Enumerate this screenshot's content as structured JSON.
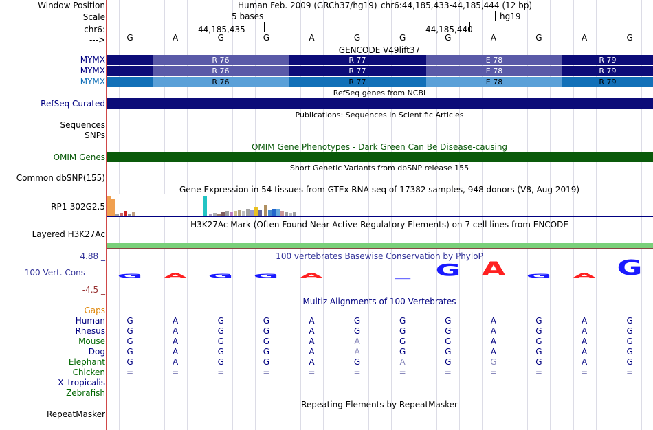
{
  "window_position": {
    "label": "Window Position",
    "assembly": "Human Feb. 2009 (GRCh37/hg19)",
    "coords": "chr6:44,185,433-44,185,444 (12 bp)"
  },
  "scale": {
    "label": "Scale",
    "text": "5 bases",
    "db": "hg19"
  },
  "chrom": {
    "label": "chr6:",
    "pos1": "44,185,435",
    "pos2": "44,185,440"
  },
  "strand": {
    "label": "--->",
    "bases": [
      "G",
      "A",
      "G",
      "G",
      "A",
      "G",
      "G",
      "G",
      "A",
      "G",
      "A",
      "G"
    ]
  },
  "gencode": {
    "title": "GENCODE V49lift37",
    "tracks": [
      {
        "label": "MYMX",
        "codons": [
          "",
          "R 76",
          "R 77",
          "E 78",
          "R 79"
        ]
      },
      {
        "label": "MYMX",
        "codons": [
          "",
          "R 76",
          "R 77",
          "E 78",
          "R 79"
        ]
      },
      {
        "label": "MYMX",
        "codons": [
          "",
          "R 76",
          "R 77",
          "E 78",
          "R 79"
        ]
      }
    ]
  },
  "refseq": {
    "title": "RefSeq genes from NCBI",
    "label": "RefSeq Curated"
  },
  "publications": {
    "title": "Publications: Sequences in Scientific Articles",
    "label": "Sequences"
  },
  "snps": {
    "label": "SNPs"
  },
  "omim": {
    "title": "OMIM Gene Phenotypes - Dark Green Can Be Disease-causing",
    "label": "OMIM Genes"
  },
  "dbsnp": {
    "title": "Short Genetic Variants from dbSNP release 155",
    "label": "Common dbSNP(155)"
  },
  "gtex": {
    "title": "Gene Expression in 54 tissues from GTEx RNA-seq of 17382 samples, 948 donors (V8, Aug 2019)",
    "label": "RP1-302G2.5",
    "bars": [
      {
        "v": 0.95,
        "c": "#f0a050"
      },
      {
        "v": 0.85,
        "c": "#f0a050"
      },
      {
        "v": 0.1,
        "c": "#a0a0a0"
      },
      {
        "v": 0.15,
        "c": "#cc6666"
      },
      {
        "v": 0.25,
        "c": "#cc2222"
      },
      {
        "v": 0.1,
        "c": "#999999"
      },
      {
        "v": 0.2,
        "c": "#c0a080"
      },
      {
        "v": 0.95,
        "c": "#22c4c4"
      },
      {
        "v": 0.1,
        "c": "#b0a0c0"
      },
      {
        "v": 0.15,
        "c": "#b0b0b0"
      },
      {
        "v": 0.12,
        "c": "#a08070"
      },
      {
        "v": 0.2,
        "c": "#806060"
      },
      {
        "v": 0.25,
        "c": "#a0a0a0"
      },
      {
        "v": 0.2,
        "c": "#c080c0"
      },
      {
        "v": 0.25,
        "c": "#d0c090"
      },
      {
        "v": 0.3,
        "c": "#b0a080"
      },
      {
        "v": 0.25,
        "c": "#c0c0c0"
      },
      {
        "v": 0.35,
        "c": "#a0a0a0"
      },
      {
        "v": 0.3,
        "c": "#9999cc"
      },
      {
        "v": 0.45,
        "c": "#e8c020"
      },
      {
        "v": 0.3,
        "c": "#666699"
      },
      {
        "v": 0.55,
        "c": "#b09060"
      },
      {
        "v": 0.3,
        "c": "#4488cc"
      },
      {
        "v": 0.35,
        "c": "#2266cc"
      },
      {
        "v": 0.35,
        "c": "#66aadd"
      },
      {
        "v": 0.25,
        "c": "#cc9999"
      },
      {
        "v": 0.2,
        "c": "#a0a0a0"
      },
      {
        "v": 0.15,
        "c": "#c0c0c0"
      },
      {
        "v": 0.18,
        "c": "#a0a0a0"
      }
    ]
  },
  "h3k27ac": {
    "title": "H3K27Ac Mark (Often Found Near Active Regulatory Elements) on 7 cell lines from ENCODE",
    "label": "Layered H3K27Ac"
  },
  "phylop": {
    "title": "100 vertebrates Basewise Conservation by PhyloP",
    "label": "100 Vert. Cons",
    "max": "4.88 _",
    "min": "-4.5 _",
    "letters": [
      {
        "b": "G",
        "c": "#1a1aff",
        "h": 0.2
      },
      {
        "b": "A",
        "c": "#ff2020",
        "h": 0.3
      },
      {
        "b": "G",
        "c": "#1a1aff",
        "h": 0.2
      },
      {
        "b": "G",
        "c": "#1a1aff",
        "h": 0.2
      },
      {
        "b": "A",
        "c": "#ff2020",
        "h": 0.3
      },
      {
        "b": "",
        "c": "#1a1aff",
        "h": 0
      },
      {
        "b": "_",
        "c": "#1a1aff",
        "h": 0.1
      },
      {
        "b": "G",
        "c": "#1a1aff",
        "h": 0.8
      },
      {
        "b": "A",
        "c": "#ff2020",
        "h": 0.9
      },
      {
        "b": "G",
        "c": "#1a1aff",
        "h": 0.2
      },
      {
        "b": "A",
        "c": "#ff2020",
        "h": 0.3
      },
      {
        "b": "G",
        "c": "#1a1aff",
        "h": 1.0
      }
    ]
  },
  "multiz": {
    "title": "Multiz Alignments of 100 Vertebrates",
    "gaps_label": "Gaps",
    "species": [
      {
        "name": "Human",
        "color": "#000080",
        "bases": [
          "G",
          "A",
          "G",
          "G",
          "A",
          "G",
          "G",
          "G",
          "A",
          "G",
          "A",
          "G"
        ],
        "dim": []
      },
      {
        "name": "Rhesus",
        "color": "#000080",
        "bases": [
          "G",
          "A",
          "G",
          "G",
          "A",
          "G",
          "G",
          "G",
          "A",
          "G",
          "A",
          "G"
        ],
        "dim": []
      },
      {
        "name": "Mouse",
        "color": "#006600",
        "bases": [
          "G",
          "A",
          "G",
          "G",
          "A",
          "A",
          "G",
          "G",
          "A",
          "G",
          "A",
          "G"
        ],
        "dim": [
          5
        ]
      },
      {
        "name": "Dog",
        "color": "#000080",
        "bases": [
          "G",
          "A",
          "G",
          "G",
          "A",
          "A",
          "G",
          "G",
          "A",
          "G",
          "A",
          "G"
        ],
        "dim": [
          5
        ]
      },
      {
        "name": "Elephant",
        "color": "#006600",
        "bases": [
          "G",
          "A",
          "G",
          "G",
          "A",
          "G",
          "A",
          "G",
          "G",
          "G",
          "A",
          "G"
        ],
        "dim": [
          6,
          8
        ]
      },
      {
        "name": "Chicken",
        "color": "#006600",
        "bases": [
          "=",
          "=",
          "=",
          "=",
          "=",
          "=",
          "=",
          "=",
          "=",
          "=",
          "=",
          "="
        ],
        "dim": [
          0,
          1,
          2,
          3,
          4,
          5,
          6,
          7,
          8,
          9,
          10,
          11
        ]
      },
      {
        "name": "X_tropicalis",
        "color": "#000080",
        "bases": [],
        "dim": []
      },
      {
        "name": "Zebrafish",
        "color": "#006600",
        "bases": [],
        "dim": []
      }
    ]
  },
  "repeatmasker": {
    "title": "Repeating Elements by RepeatMasker",
    "label": "RepeatMasker"
  },
  "colors": {
    "gencode_dark": "#0c0c78",
    "gencode_light": "#5a5aa8",
    "gencode3_dark": "#1270b8",
    "gencode3_light": "#5aa0d8",
    "refseq": "#0c0c78",
    "omim": "#0a5a0a",
    "h3k27ac": "#7ad07a"
  }
}
